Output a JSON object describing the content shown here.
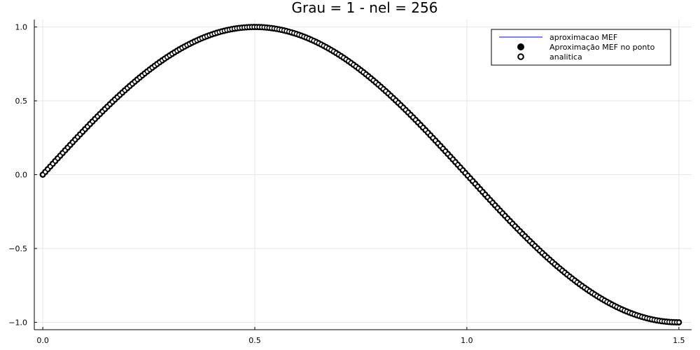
{
  "chart_data": {
    "type": "scatter",
    "title": "Grau = 1 - nel = 256",
    "xlabel": "",
    "ylabel": "",
    "xlim": [
      -0.02,
      1.53
    ],
    "ylim": [
      -1.05,
      1.05
    ],
    "x_ticks": [
      0.0,
      0.5,
      1.0,
      1.5
    ],
    "x_tick_labels": [
      "0.0",
      "0.5",
      "1.0",
      "1.5"
    ],
    "y_ticks": [
      -1.0,
      -0.5,
      0.0,
      0.5,
      1.0
    ],
    "y_tick_labels": [
      "−1.0",
      "−0.5",
      "0.0",
      "0.5",
      "1.0"
    ],
    "grid": true,
    "legend_position": "top-right",
    "function": "sin(pi*x)",
    "x_range": [
      0.0,
      1.5
    ],
    "n_points": 257,
    "series": [
      {
        "name": "aproximacao MEF",
        "kind": "line",
        "color": "#0000ff"
      },
      {
        "name": "Aproximação MEF no ponto",
        "kind": "filled-marker",
        "color": "#000000"
      },
      {
        "name": "analitica",
        "kind": "hollow-marker",
        "color": "#000000",
        "fill": "#ffffff"
      }
    ]
  }
}
